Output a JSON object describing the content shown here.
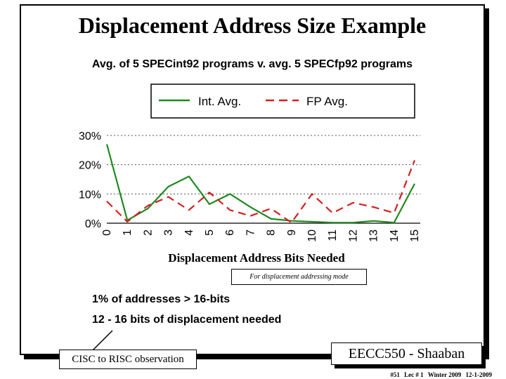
{
  "slide": {
    "title": "Displacement Address Size Example",
    "subtitle": "Avg. of 5 SPECint92 programs v. avg. 5 SPECfp92 programs",
    "note": "For displacement addressing mode",
    "bullet1": "1% of addresses > 16-bits",
    "bullet2": "12 - 16 bits of displacement needed",
    "callout": "CISC to RISC observation",
    "course_box": "EECC550 - Shaaban",
    "footer": {
      "slide_no": "#51",
      "lec": "Lec # 1",
      "term": "Winter 2009",
      "date": "12-1-2009"
    },
    "colors": {
      "int_series": "#1f8a1f",
      "fp_series": "#d42020",
      "grid": "#555555"
    }
  },
  "chart_data": {
    "type": "line",
    "title": "",
    "xlabel": "Displacement Address Bits Needed",
    "ylabel": "",
    "x": [
      0,
      1,
      2,
      3,
      4,
      5,
      6,
      7,
      8,
      9,
      10,
      11,
      12,
      13,
      14,
      15
    ],
    "ylim": [
      0,
      30
    ],
    "yticks": [
      "0%",
      "10%",
      "20%",
      "30%"
    ],
    "grid": "horizontal-dashed",
    "legend_placement": "top",
    "series": [
      {
        "name": "Int. Avg.",
        "style": "solid",
        "values": [
          27,
          1,
          5,
          12.5,
          16,
          6.5,
          10,
          5.5,
          1.5,
          0.8,
          0.5,
          0.2,
          0.2,
          0.8,
          0.2,
          13.5
        ]
      },
      {
        "name": "FP Avg.",
        "style": "dashed",
        "values": [
          7.5,
          0.5,
          6,
          9,
          4.5,
          10.5,
          4.5,
          2.5,
          5,
          0.2,
          10,
          3.5,
          7,
          5.5,
          3.5,
          21.5
        ]
      }
    ]
  }
}
